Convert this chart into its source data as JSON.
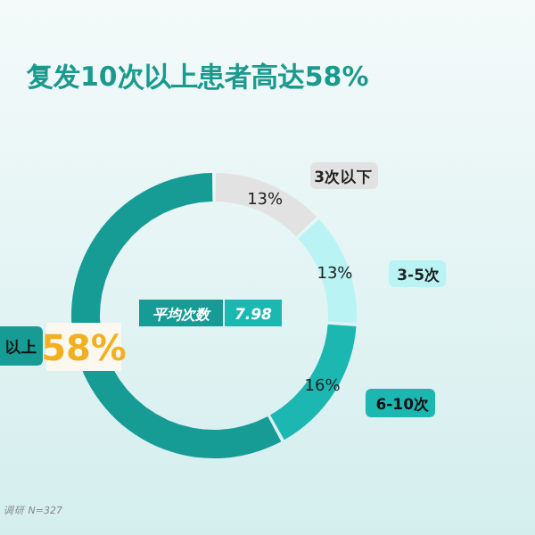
{
  "chart_data": {
    "type": "donut",
    "title": "复发10次以上患者高达58%",
    "categories": [
      "3次以下",
      "3-5次",
      "6-10次",
      "以上"
    ],
    "values": [
      13,
      13,
      16,
      58
    ],
    "colors": [
      "#e2e2e2",
      "#b9f3f3",
      "#1db7b2",
      "#169b95"
    ],
    "value_labels": [
      "13%",
      "13%",
      "16%",
      "58%"
    ],
    "annotations": [
      "平均次数",
      "7.98",
      "调研 N=327"
    ]
  }
}
